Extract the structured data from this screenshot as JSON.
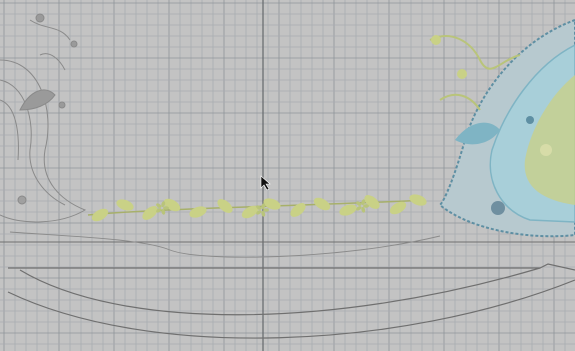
{
  "canvas": {
    "background": "#c3c3c3",
    "grid_minor_color": "#a9adb1",
    "grid_major_color": "#8f949a",
    "guide_color": "#6a6e72",
    "outline_color": "#6f6f6f"
  },
  "design": {
    "left_motif": {
      "thread_color": "#8a8a8a",
      "icon": "paisley-outline-icon"
    },
    "right_motif": {
      "thread_colors": [
        "#7fb4c4",
        "#a8cfd9",
        "#b9c47a",
        "#c8d08a",
        "#5e8fa3",
        "#d7dca8"
      ],
      "icon": "paisley-embroidery-icon"
    },
    "vine": {
      "leaf_color": "#c9d186",
      "stem_color": "#a7b06a",
      "icon": "leaf-vine-icon"
    }
  },
  "cursor": {
    "icon": "arrow-cursor-icon"
  }
}
